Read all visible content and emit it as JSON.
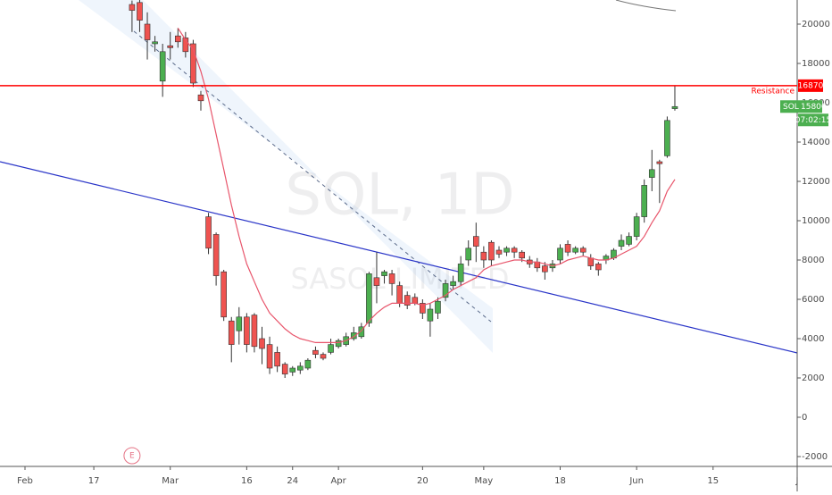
{
  "chart_data": {
    "type": "candlestick",
    "watermark": "SOL, 1D",
    "watermark_sub": "SASOL LIMITED",
    "symbol": "SOL",
    "countdown": "07:02:15",
    "categories": [
      "Feb",
      null,
      null,
      null,
      null,
      null,
      null,
      null,
      null,
      "17",
      null,
      null,
      null,
      null,
      null,
      null,
      null,
      null,
      null,
      "Mar",
      null,
      null,
      null,
      null,
      null,
      null,
      null,
      null,
      null,
      "16",
      null,
      null,
      null,
      null,
      null,
      "24",
      null,
      null,
      null,
      null,
      null,
      "Apr",
      null,
      null,
      null,
      null,
      null,
      null,
      null,
      null,
      null,
      null,
      "20",
      null,
      null,
      null,
      null,
      null,
      null,
      null,
      "May",
      null,
      null,
      null,
      null,
      null,
      null,
      null,
      null,
      null,
      "18",
      null,
      null,
      null,
      null,
      null,
      null,
      null,
      null,
      null,
      "Jun",
      null,
      null,
      null,
      null,
      null,
      null,
      null,
      null,
      null,
      "15",
      null,
      null,
      null,
      null,
      null,
      null,
      null,
      null,
      null,
      null,
      "J"
    ],
    "open": [
      null,
      null,
      null,
      null,
      null,
      null,
      null,
      null,
      null,
      null,
      null,
      null,
      null,
      null,
      21000,
      21100,
      20000,
      19000,
      17100,
      18900,
      19400,
      19300,
      19000,
      16400,
      10200,
      9300,
      7400,
      4900,
      4400,
      5100,
      5200,
      4000,
      3700,
      3300,
      2700,
      2300,
      2400,
      2500,
      3400,
      3200,
      3300,
      3600,
      3700,
      4000,
      4100,
      4800,
      7100,
      7200,
      7300,
      6700,
      6200,
      6100,
      5800,
      4900,
      5300,
      6100,
      6700,
      6900,
      8000,
      9200,
      8400,
      8900,
      8500,
      8400,
      8600,
      8400,
      8000,
      7900,
      7700,
      7600,
      8000,
      8800,
      8400,
      8600,
      8100,
      7800,
      8000,
      8100,
      8700,
      8800,
      9200,
      10200,
      12200,
      13000,
      13300,
      15700,
      null,
      null,
      null,
      null,
      null,
      null,
      null,
      null,
      null,
      null,
      null,
      null,
      null,
      null,
      null,
      null
    ],
    "high": [
      null,
      null,
      null,
      null,
      null,
      null,
      null,
      null,
      null,
      null,
      null,
      null,
      null,
      null,
      21200,
      21300,
      20600,
      19400,
      19000,
      19600,
      19800,
      19600,
      19200,
      16600,
      10400,
      9400,
      7500,
      5100,
      5600,
      5300,
      5300,
      4600,
      4100,
      3600,
      2800,
      2600,
      2800,
      3000,
      3600,
      3300,
      4000,
      4000,
      4300,
      4600,
      4800,
      7400,
      8400,
      7500,
      7500,
      6900,
      6400,
      6300,
      6000,
      5800,
      6100,
      7000,
      7200,
      8200,
      9000,
      9900,
      8700,
      9000,
      8700,
      8700,
      8700,
      8500,
      8200,
      8100,
      7900,
      8000,
      8800,
      9000,
      8700,
      8700,
      8300,
      7900,
      8300,
      8600,
      9300,
      9400,
      10400,
      12100,
      13600,
      13100,
      15300,
      16850,
      null,
      null,
      null,
      null,
      null,
      null,
      null,
      null,
      null,
      null,
      null,
      null,
      null,
      null,
      null,
      null
    ],
    "low": [
      null,
      null,
      null,
      null,
      null,
      null,
      null,
      null,
      null,
      null,
      null,
      null,
      null,
      null,
      19600,
      19600,
      18200,
      18600,
      16300,
      18200,
      18800,
      18300,
      16800,
      15600,
      8300,
      6700,
      4900,
      2800,
      3700,
      3300,
      3300,
      2700,
      2200,
      2300,
      2000,
      2100,
      2200,
      2400,
      3000,
      2900,
      3200,
      3500,
      3600,
      3900,
      4000,
      4600,
      5800,
      6800,
      6200,
      5600,
      5500,
      5700,
      5000,
      4100,
      5000,
      5900,
      6500,
      6700,
      7700,
      7900,
      7600,
      7700,
      8100,
      8200,
      8100,
      7900,
      7600,
      7400,
      7000,
      7400,
      7800,
      8200,
      8300,
      8200,
      7500,
      7200,
      7800,
      8000,
      8500,
      8700,
      9000,
      9900,
      11500,
      10900,
      13200,
      15600,
      null,
      null,
      null,
      null,
      null,
      null,
      null,
      null,
      null,
      null,
      null,
      null,
      null,
      null,
      null,
      null
    ],
    "close": [
      null,
      null,
      null,
      null,
      null,
      null,
      null,
      null,
      null,
      null,
      null,
      null,
      null,
      null,
      20700,
      20200,
      19200,
      19100,
      18600,
      18800,
      19100,
      18600,
      17000,
      16100,
      8600,
      7200,
      5100,
      3700,
      5100,
      3700,
      3600,
      3500,
      2500,
      2600,
      2200,
      2500,
      2600,
      2900,
      3200,
      3000,
      3700,
      3900,
      4100,
      4300,
      4600,
      7300,
      6700,
      7400,
      6800,
      5800,
      5700,
      5800,
      5300,
      5500,
      5900,
      6800,
      6900,
      7800,
      8600,
      8700,
      8000,
      8000,
      8300,
      8600,
      8400,
      8100,
      7800,
      7600,
      7400,
      7800,
      8600,
      8400,
      8600,
      8400,
      7700,
      7500,
      8200,
      8500,
      9000,
      9200,
      10200,
      11800,
      12600,
      12900,
      15100,
      15806,
      null,
      null,
      null,
      null,
      null,
      null,
      null,
      null,
      null,
      null,
      null,
      null,
      null,
      null,
      null,
      null
    ],
    "up_color": "#4caf50",
    "down_color": "#ef5350",
    "ma": {
      "color": "#e8556b",
      "values": [
        null,
        null,
        null,
        null,
        null,
        null,
        null,
        null,
        null,
        null,
        null,
        null,
        null,
        null,
        null,
        null,
        null,
        null,
        null,
        null,
        19800,
        19200,
        18700,
        17600,
        16200,
        14400,
        12600,
        10800,
        9200,
        7800,
        6900,
        6000,
        5300,
        4900,
        4500,
        4200,
        4000,
        3900,
        3800,
        3800,
        3800,
        3800,
        3900,
        4100,
        4400,
        4900,
        5300,
        5600,
        5800,
        5800,
        5800,
        5800,
        5700,
        5800,
        6000,
        6200,
        6500,
        6700,
        6900,
        7100,
        7500,
        7700,
        7800,
        7900,
        8000,
        8000,
        7900,
        7900,
        7800,
        7700,
        7800,
        8000,
        8100,
        8200,
        8100,
        8000,
        8000,
        8100,
        8300,
        8500,
        8700,
        9200,
        9900,
        10500,
        11500,
        12100,
        null,
        null,
        null,
        null,
        null,
        null,
        null,
        null,
        null,
        null,
        null,
        null,
        null,
        null,
        null,
        null
      ]
    },
    "resistance": {
      "label": "Resistance",
      "value": 16870,
      "color": "#ff0000"
    },
    "event": {
      "label": "E",
      "x": 14
    },
    "ylim": [
      -2500,
      21227
    ],
    "yticks": [
      -2000,
      0,
      2000,
      4000,
      6000,
      8000,
      10000,
      12000,
      14000,
      16000,
      18000,
      20000
    ]
  }
}
